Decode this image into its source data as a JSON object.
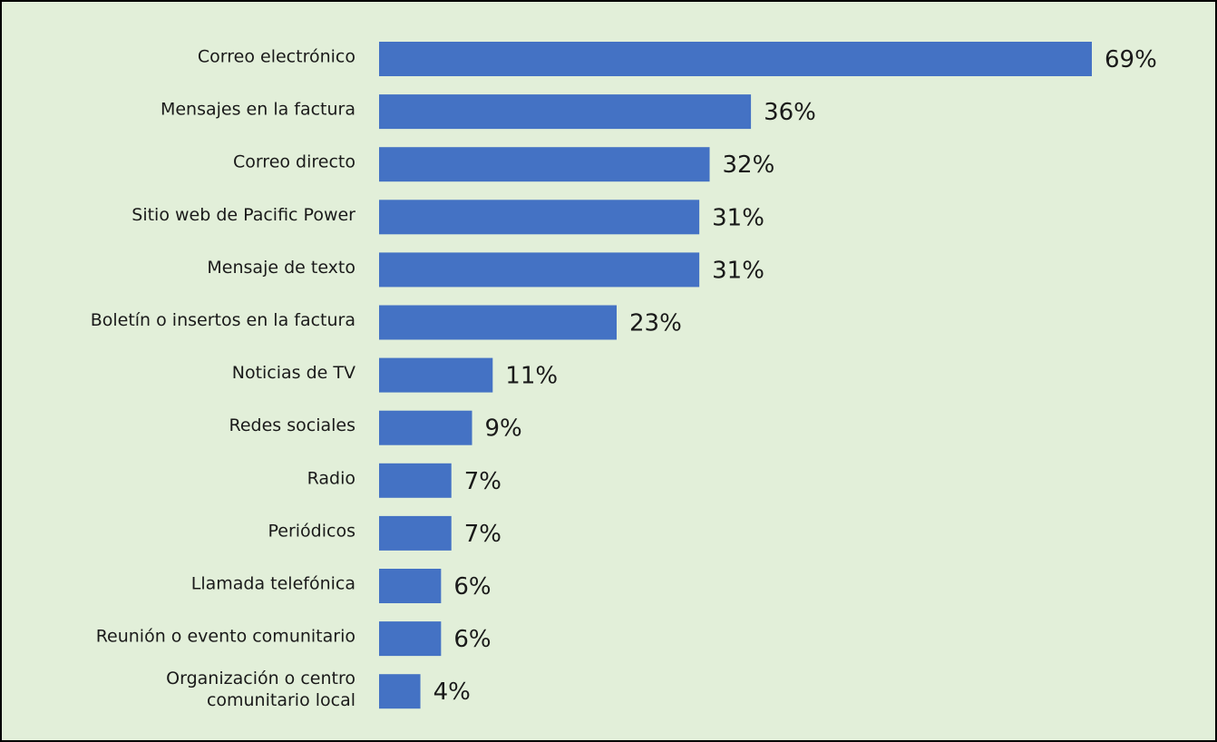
{
  "chart_data": {
    "type": "bar",
    "orientation": "horizontal",
    "categories": [
      "Correo electrónico",
      "Mensajes en la factura",
      "Correo directo",
      "Sitio web de Pacific Power",
      "Mensaje de texto",
      "Boletín o insertos en la factura",
      "Noticias de TV",
      "Redes sociales",
      "Radio",
      "Periódicos",
      "Llamada telefónica",
      "Reunión o evento comunitario",
      "Organización o centro\ncomunitario local"
    ],
    "values": [
      69,
      36,
      32,
      31,
      31,
      23,
      11,
      9,
      7,
      7,
      6,
      6,
      4
    ],
    "value_labels": [
      "69%",
      "36%",
      "32%",
      "31%",
      "31%",
      "23%",
      "11%",
      "9%",
      "7%",
      "7%",
      "6%",
      "6%",
      "4%"
    ],
    "color": "#4472c4"
  }
}
